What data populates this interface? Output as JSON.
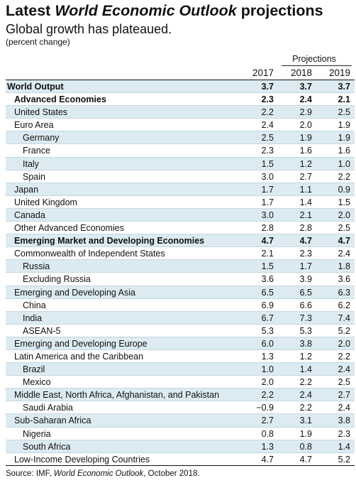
{
  "title": {
    "prefix": "Latest ",
    "emphasis": "World Economic Outlook",
    "suffix": " projections"
  },
  "subtitle": "Global growth has plateaued.",
  "unit": "(percent change)",
  "projections_label": "Projections",
  "source": {
    "prefix": "Source: IMF, ",
    "emphasis": "World Economic Outlook",
    "suffix": ", October 2018."
  },
  "chart_data": {
    "type": "table",
    "title": "Latest World Economic Outlook projections",
    "subtitle": "Global growth has plateaued.",
    "unit": "(percent change)",
    "columns": [
      "2017",
      "2018",
      "2019"
    ],
    "projection_columns": [
      "2018",
      "2019"
    ],
    "rows": [
      {
        "label": "World Output",
        "values": [
          "3.7",
          "3.7",
          "3.7"
        ],
        "bold": true,
        "shaded": true,
        "indent": 0
      },
      {
        "label": "Advanced Economies",
        "values": [
          "2.3",
          "2.4",
          "2.1"
        ],
        "bold": true,
        "shaded": false,
        "indent": 1
      },
      {
        "label": "United States",
        "values": [
          "2.2",
          "2.9",
          "2.5"
        ],
        "bold": false,
        "shaded": true,
        "indent": 1
      },
      {
        "label": "Euro Area",
        "values": [
          "2.4",
          "2.0",
          "1.9"
        ],
        "bold": false,
        "shaded": false,
        "indent": 1
      },
      {
        "label": "Germany",
        "values": [
          "2.5",
          "1.9",
          "1.9"
        ],
        "bold": false,
        "shaded": true,
        "indent": 2
      },
      {
        "label": "France",
        "values": [
          "2.3",
          "1.6",
          "1.6"
        ],
        "bold": false,
        "shaded": false,
        "indent": 2
      },
      {
        "label": "Italy",
        "values": [
          "1.5",
          "1.2",
          "1.0"
        ],
        "bold": false,
        "shaded": true,
        "indent": 2
      },
      {
        "label": "Spain",
        "values": [
          "3.0",
          "2.7",
          "2.2"
        ],
        "bold": false,
        "shaded": false,
        "indent": 2
      },
      {
        "label": "Japan",
        "values": [
          "1.7",
          "1.1",
          "0.9"
        ],
        "bold": false,
        "shaded": true,
        "indent": 1
      },
      {
        "label": "United Kingdom",
        "values": [
          "1.7",
          "1.4",
          "1.5"
        ],
        "bold": false,
        "shaded": false,
        "indent": 1
      },
      {
        "label": "Canada",
        "values": [
          "3.0",
          "2.1",
          "2.0"
        ],
        "bold": false,
        "shaded": true,
        "indent": 1
      },
      {
        "label": "Other Advanced Economies",
        "values": [
          "2.8",
          "2.8",
          "2.5"
        ],
        "bold": false,
        "shaded": false,
        "indent": 1
      },
      {
        "label": "Emerging Market and Developing Economies",
        "values": [
          "4.7",
          "4.7",
          "4.7"
        ],
        "bold": true,
        "shaded": true,
        "indent": 1
      },
      {
        "label": "Commonwealth of Independent States",
        "values": [
          "2.1",
          "2.3",
          "2.4"
        ],
        "bold": false,
        "shaded": false,
        "indent": 1
      },
      {
        "label": "Russia",
        "values": [
          "1.5",
          "1.7",
          "1.8"
        ],
        "bold": false,
        "shaded": true,
        "indent": 2
      },
      {
        "label": "Excluding Russia",
        "values": [
          "3.6",
          "3.9",
          "3.6"
        ],
        "bold": false,
        "shaded": false,
        "indent": 2
      },
      {
        "label": "Emerging and Developing Asia",
        "values": [
          "6.5",
          "6.5",
          "6.3"
        ],
        "bold": false,
        "shaded": true,
        "indent": 1
      },
      {
        "label": "China",
        "values": [
          "6.9",
          "6.6",
          "6.2"
        ],
        "bold": false,
        "shaded": false,
        "indent": 2
      },
      {
        "label": "India",
        "values": [
          "6.7",
          "7.3",
          "7.4"
        ],
        "bold": false,
        "shaded": true,
        "indent": 2
      },
      {
        "label": "ASEAN-5",
        "values": [
          "5.3",
          "5.3",
          "5.2"
        ],
        "bold": false,
        "shaded": false,
        "indent": 2
      },
      {
        "label": "Emerging and Developing Europe",
        "values": [
          "6.0",
          "3.8",
          "2.0"
        ],
        "bold": false,
        "shaded": true,
        "indent": 1
      },
      {
        "label": "Latin America and the Caribbean",
        "values": [
          "1.3",
          "1.2",
          "2.2"
        ],
        "bold": false,
        "shaded": false,
        "indent": 1
      },
      {
        "label": "Brazil",
        "values": [
          "1.0",
          "1.4",
          "2.4"
        ],
        "bold": false,
        "shaded": true,
        "indent": 2
      },
      {
        "label": "Mexico",
        "values": [
          "2.0",
          "2.2",
          "2.5"
        ],
        "bold": false,
        "shaded": false,
        "indent": 2
      },
      {
        "label": "Middle East, North Africa, Afghanistan, and Pakistan",
        "values": [
          "2.2",
          "2.4",
          "2.7"
        ],
        "bold": false,
        "shaded": true,
        "indent": 1
      },
      {
        "label": "Saudi Arabia",
        "values": [
          "−0.9",
          "2.2",
          "2.4"
        ],
        "bold": false,
        "shaded": false,
        "indent": 2
      },
      {
        "label": "Sub-Saharan Africa",
        "values": [
          "2.7",
          "3.1",
          "3.8"
        ],
        "bold": false,
        "shaded": true,
        "indent": 1
      },
      {
        "label": "Nigeria",
        "values": [
          "0.8",
          "1.9",
          "2.3"
        ],
        "bold": false,
        "shaded": false,
        "indent": 2
      },
      {
        "label": "South Africa",
        "values": [
          "1.3",
          "0.8",
          "1.4"
        ],
        "bold": false,
        "shaded": true,
        "indent": 2
      },
      {
        "label": "Low-Income Developing Countries",
        "values": [
          "4.7",
          "4.7",
          "5.2"
        ],
        "bold": false,
        "shaded": false,
        "indent": 1
      }
    ]
  }
}
